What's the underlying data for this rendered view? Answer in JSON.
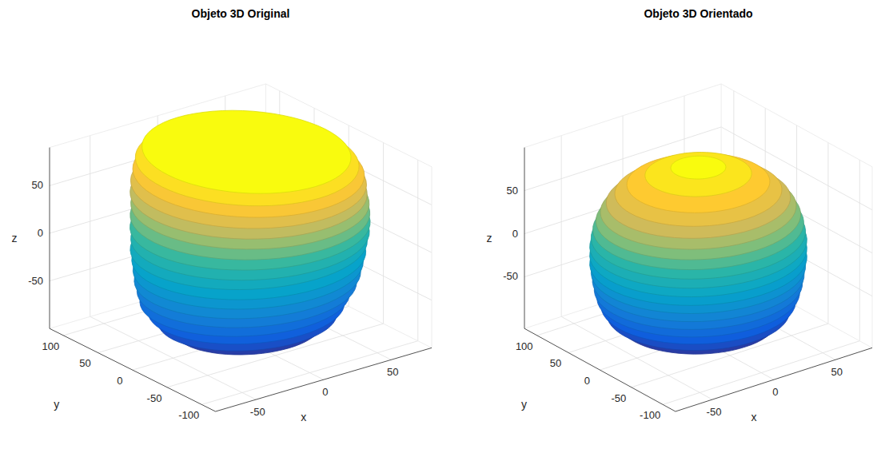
{
  "chart_data": [
    {
      "type": "scatter3d",
      "title": "Objeto 3D Original",
      "xlabel": "x",
      "ylabel": "y",
      "zlabel": "z",
      "xlim": [
        -80,
        80
      ],
      "ylim": [
        -120,
        120
      ],
      "zlim": [
        -100,
        90
      ],
      "xticks": [
        -50,
        0,
        50
      ],
      "yticks": [
        -100,
        -50,
        0,
        50,
        100
      ],
      "zticks": [
        -50,
        0,
        50
      ],
      "grid": true,
      "slices": [
        {
          "z": -95,
          "cx": 0,
          "cy": -10,
          "rx": 25,
          "ry": 35
        },
        {
          "z": -85,
          "cx": 0,
          "cy": -10,
          "rx": 45,
          "ry": 60
        },
        {
          "z": -75,
          "cx": 0,
          "cy": -10,
          "rx": 55,
          "ry": 72
        },
        {
          "z": -65,
          "cx": 0,
          "cy": -8,
          "rx": 60,
          "ry": 80
        },
        {
          "z": -55,
          "cx": 0,
          "cy": -6,
          "rx": 64,
          "ry": 86
        },
        {
          "z": -45,
          "cx": 2,
          "cy": -5,
          "rx": 67,
          "ry": 90
        },
        {
          "z": -35,
          "cx": 3,
          "cy": -4,
          "rx": 69,
          "ry": 93
        },
        {
          "z": -25,
          "cx": 4,
          "cy": -3,
          "rx": 70,
          "ry": 95
        },
        {
          "z": -15,
          "cx": 5,
          "cy": -2,
          "rx": 71,
          "ry": 97
        },
        {
          "z": -5,
          "cx": 6,
          "cy": 0,
          "rx": 72,
          "ry": 98
        },
        {
          "z": 5,
          "cx": 7,
          "cy": 0,
          "rx": 72,
          "ry": 100
        },
        {
          "z": 15,
          "cx": 8,
          "cy": 2,
          "rx": 72,
          "ry": 102
        },
        {
          "z": 25,
          "cx": 9,
          "cy": 4,
          "rx": 71,
          "ry": 104
        },
        {
          "z": 35,
          "cx": 10,
          "cy": 6,
          "rx": 70,
          "ry": 105
        },
        {
          "z": 45,
          "cx": 10,
          "cy": 8,
          "rx": 69,
          "ry": 106
        },
        {
          "z": 55,
          "cx": 11,
          "cy": 10,
          "rx": 68,
          "ry": 107
        },
        {
          "z": 65,
          "cx": 12,
          "cy": 12,
          "rx": 66,
          "ry": 107
        },
        {
          "z": 75,
          "cx": 12,
          "cy": 14,
          "rx": 63,
          "ry": 105
        },
        {
          "z": 85,
          "cx": 12,
          "cy": 15,
          "rx": 58,
          "ry": 100
        }
      ]
    },
    {
      "type": "scatter3d",
      "title": "Objeto 3D Orientado",
      "xlabel": "x",
      "ylabel": "y",
      "zlabel": "z",
      "xlim": [
        -80,
        80
      ],
      "ylim": [
        -120,
        120
      ],
      "zlim": [
        -110,
        100
      ],
      "xticks": [
        -50,
        0,
        50
      ],
      "yticks": [
        -100,
        -50,
        0,
        50,
        100
      ],
      "zticks": [
        -50,
        0,
        50
      ],
      "grid": true,
      "slices": [
        {
          "z": -100,
          "cx": 0,
          "cy": 0,
          "rx": 35,
          "ry": 50
        },
        {
          "z": -90,
          "cx": 0,
          "cy": 0,
          "rx": 52,
          "ry": 75
        },
        {
          "z": -80,
          "cx": 0,
          "cy": 0,
          "rx": 60,
          "ry": 86
        },
        {
          "z": -70,
          "cx": 0,
          "cy": 0,
          "rx": 64,
          "ry": 91
        },
        {
          "z": -60,
          "cx": 0,
          "cy": 0,
          "rx": 67,
          "ry": 94
        },
        {
          "z": -50,
          "cx": 0,
          "cy": 0,
          "rx": 69,
          "ry": 96
        },
        {
          "z": -40,
          "cx": 0,
          "cy": 0,
          "rx": 70,
          "ry": 98
        },
        {
          "z": -30,
          "cx": 0,
          "cy": 0,
          "rx": 71,
          "ry": 99
        },
        {
          "z": -20,
          "cx": 0,
          "cy": 0,
          "rx": 72,
          "ry": 100
        },
        {
          "z": -10,
          "cx": 0,
          "cy": 0,
          "rx": 72,
          "ry": 100
        },
        {
          "z": 0,
          "cx": 0,
          "cy": 0,
          "rx": 72,
          "ry": 100
        },
        {
          "z": 10,
          "cx": 0,
          "cy": 0,
          "rx": 71,
          "ry": 99
        },
        {
          "z": 20,
          "cx": 0,
          "cy": 0,
          "rx": 70,
          "ry": 97
        },
        {
          "z": 30,
          "cx": 0,
          "cy": 0,
          "rx": 68,
          "ry": 94
        },
        {
          "z": 40,
          "cx": 0,
          "cy": 0,
          "rx": 65,
          "ry": 90
        },
        {
          "z": 50,
          "cx": 0,
          "cy": 0,
          "rx": 61,
          "ry": 85
        },
        {
          "z": 60,
          "cx": 0,
          "cy": 0,
          "rx": 55,
          "ry": 78
        },
        {
          "z": 70,
          "cx": 0,
          "cy": 0,
          "rx": 47,
          "ry": 67
        },
        {
          "z": 80,
          "cx": 0,
          "cy": 0,
          "rx": 35,
          "ry": 50
        },
        {
          "z": 88,
          "cx": 0,
          "cy": 0,
          "rx": 18,
          "ry": 26
        }
      ]
    }
  ]
}
